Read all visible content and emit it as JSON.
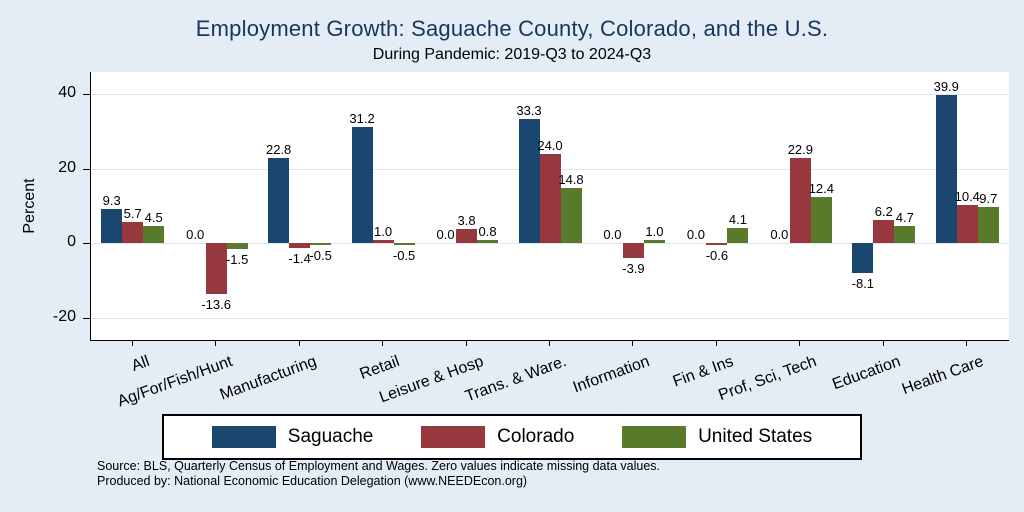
{
  "title": "Employment Growth: Saguache County, Colorado, and the U.S.",
  "subtitle": "During Pandemic: 2019-Q3 to 2024-Q3",
  "notes": {
    "line1": "Source: BLS, Quarterly Census of Employment and Wages. Zero values indicate missing data values.",
    "line2": "Produced by: National Economic Education Delegation (www.NEEDEcon.org)"
  },
  "colors": {
    "background": "#e4ecf5",
    "plot_background": "#ffffff",
    "title_text": "#17365c",
    "gridline": "#dde6ef",
    "saguache": "#1a476f",
    "colorado": "#96383d",
    "united_states": "#5a7a2b"
  },
  "chart_data": {
    "type": "bar",
    "title": "Employment Growth: Saguache County, Colorado, and the U.S.",
    "subtitle": "During Pandemic: 2019-Q3 to 2024-Q3",
    "xlabel": "",
    "ylabel": "Percent",
    "ylim": [
      -26,
      46
    ],
    "yticks": [
      40,
      20,
      0,
      -20
    ],
    "grid": true,
    "legend_position": "bottom",
    "categories": [
      "All",
      "Ag/For/Fish/Hunt",
      "Manufacturing",
      "Retail",
      "Leisure & Hosp",
      "Trans. & Ware.",
      "Information",
      "Fin & Ins",
      "Prof, Sci, Tech",
      "Education",
      "Health Care"
    ],
    "series": [
      {
        "name": "Saguache",
        "color": "#1a476f",
        "values": [
          9.3,
          0.0,
          22.8,
          31.2,
          0.0,
          33.3,
          0.0,
          0.0,
          0.0,
          -8.1,
          39.9
        ]
      },
      {
        "name": "Colorado",
        "color": "#96383d",
        "values": [
          5.7,
          -13.6,
          -1.4,
          1.0,
          3.8,
          24.0,
          -3.9,
          -0.6,
          22.9,
          6.2,
          10.4
        ]
      },
      {
        "name": "United States",
        "color": "#5a7a2b",
        "values": [
          4.5,
          -1.5,
          -0.5,
          -0.5,
          0.8,
          14.8,
          1.0,
          4.1,
          12.4,
          4.7,
          9.7
        ]
      }
    ]
  }
}
